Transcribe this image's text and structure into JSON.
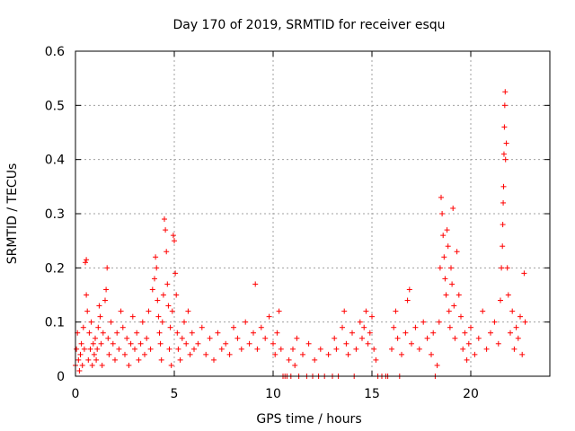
{
  "chart_data": {
    "type": "scatter",
    "title": "Day 170 of 2019, SRMTID for receiver esqu",
    "xlabel": "GPS time / hours",
    "ylabel": "SRMTID / TECUs",
    "xlim": [
      0,
      24
    ],
    "ylim": [
      0,
      0.6
    ],
    "xticks": [
      0,
      5,
      10,
      15,
      20
    ],
    "yticks": [
      0,
      0.1,
      0.2,
      0.3,
      0.4,
      0.5,
      0.6
    ],
    "xtick_labels": [
      "0",
      "5",
      "10",
      "15",
      "20"
    ],
    "ytick_labels": [
      "0",
      "0.1",
      "0.2",
      "0.3",
      "0.4",
      "0.5",
      "0.6"
    ],
    "grid": true,
    "marker": "+",
    "series": [
      {
        "name": "SRMTID",
        "color": "#ff0000",
        "points": [
          [
            0.0,
            0.02
          ],
          [
            0.05,
            0.05
          ],
          [
            0.1,
            0.08
          ],
          [
            0.15,
            0.03
          ],
          [
            0.2,
            0.01
          ],
          [
            0.25,
            0.04
          ],
          [
            0.3,
            0.06
          ],
          [
            0.35,
            0.02
          ],
          [
            0.4,
            0.09
          ],
          [
            0.45,
            0.05
          ],
          [
            0.5,
            0.21
          ],
          [
            0.55,
            0.215
          ],
          [
            0.55,
            0.15
          ],
          [
            0.6,
            0.12
          ],
          [
            0.65,
            0.03
          ],
          [
            0.7,
            0.08
          ],
          [
            0.75,
            0.05
          ],
          [
            0.8,
            0.1
          ],
          [
            0.85,
            0.02
          ],
          [
            0.9,
            0.06
          ],
          [
            0.95,
            0.04
          ],
          [
            1.0,
            0.07
          ],
          [
            1.05,
            0.03
          ],
          [
            1.1,
            0.05
          ],
          [
            1.15,
            0.09
          ],
          [
            1.2,
            0.13
          ],
          [
            1.25,
            0.11
          ],
          [
            1.3,
            0.06
          ],
          [
            1.35,
            0.02
          ],
          [
            1.4,
            0.08
          ],
          [
            1.5,
            0.14
          ],
          [
            1.55,
            0.16
          ],
          [
            1.6,
            0.2
          ],
          [
            1.65,
            0.07
          ],
          [
            1.7,
            0.04
          ],
          [
            1.8,
            0.1
          ],
          [
            1.9,
            0.06
          ],
          [
            2.0,
            0.03
          ],
          [
            2.1,
            0.08
          ],
          [
            2.2,
            0.05
          ],
          [
            2.3,
            0.12
          ],
          [
            2.4,
            0.09
          ],
          [
            2.5,
            0.04
          ],
          [
            2.6,
            0.07
          ],
          [
            2.7,
            0.02
          ],
          [
            2.8,
            0.06
          ],
          [
            2.9,
            0.11
          ],
          [
            3.0,
            0.05
          ],
          [
            3.1,
            0.08
          ],
          [
            3.2,
            0.03
          ],
          [
            3.3,
            0.06
          ],
          [
            3.4,
            0.1
          ],
          [
            3.5,
            0.04
          ],
          [
            3.6,
            0.07
          ],
          [
            3.7,
            0.12
          ],
          [
            3.8,
            0.05
          ],
          [
            3.9,
            0.16
          ],
          [
            4.0,
            0.18
          ],
          [
            4.05,
            0.22
          ],
          [
            4.1,
            0.2
          ],
          [
            4.15,
            0.14
          ],
          [
            4.2,
            0.11
          ],
          [
            4.25,
            0.08
          ],
          [
            4.3,
            0.06
          ],
          [
            4.35,
            0.03
          ],
          [
            4.4,
            0.1
          ],
          [
            4.45,
            0.15
          ],
          [
            4.5,
            0.29
          ],
          [
            4.55,
            0.27
          ],
          [
            4.6,
            0.23
          ],
          [
            4.65,
            0.17
          ],
          [
            4.7,
            0.13
          ],
          [
            4.75,
            0.05
          ],
          [
            4.8,
            0.09
          ],
          [
            4.85,
            0.02
          ],
          [
            4.9,
            0.12
          ],
          [
            4.95,
            0.26
          ],
          [
            5.0,
            0.25
          ],
          [
            5.05,
            0.19
          ],
          [
            5.1,
            0.15
          ],
          [
            5.15,
            0.08
          ],
          [
            5.2,
            0.05
          ],
          [
            5.3,
            0.03
          ],
          [
            5.4,
            0.07
          ],
          [
            5.5,
            0.1
          ],
          [
            5.6,
            0.06
          ],
          [
            5.7,
            0.12
          ],
          [
            5.8,
            0.04
          ],
          [
            5.9,
            0.08
          ],
          [
            6.0,
            0.05
          ],
          [
            6.2,
            0.06
          ],
          [
            6.4,
            0.09
          ],
          [
            6.6,
            0.04
          ],
          [
            6.8,
            0.07
          ],
          [
            7.0,
            0.03
          ],
          [
            7.2,
            0.08
          ],
          [
            7.4,
            0.05
          ],
          [
            7.6,
            0.06
          ],
          [
            7.8,
            0.04
          ],
          [
            8.0,
            0.09
          ],
          [
            8.2,
            0.07
          ],
          [
            8.4,
            0.05
          ],
          [
            8.6,
            0.1
          ],
          [
            8.8,
            0.06
          ],
          [
            9.0,
            0.08
          ],
          [
            9.1,
            0.17
          ],
          [
            9.2,
            0.05
          ],
          [
            9.4,
            0.09
          ],
          [
            9.6,
            0.07
          ],
          [
            9.8,
            0.11
          ],
          [
            10.0,
            0.06
          ],
          [
            10.1,
            0.04
          ],
          [
            10.2,
            0.08
          ],
          [
            10.3,
            0.12
          ],
          [
            10.4,
            0.05
          ],
          [
            10.5,
            0.0
          ],
          [
            10.6,
            0.0
          ],
          [
            10.7,
            0.0
          ],
          [
            10.8,
            0.03
          ],
          [
            10.9,
            0.0
          ],
          [
            11.0,
            0.05
          ],
          [
            11.1,
            0.02
          ],
          [
            11.2,
            0.07
          ],
          [
            11.3,
            0.0
          ],
          [
            11.5,
            0.04
          ],
          [
            11.7,
            0.0
          ],
          [
            11.8,
            0.06
          ],
          [
            12.0,
            0.0
          ],
          [
            12.1,
            0.03
          ],
          [
            12.3,
            0.0
          ],
          [
            12.4,
            0.05
          ],
          [
            12.6,
            0.0
          ],
          [
            12.8,
            0.04
          ],
          [
            13.0,
            0.0
          ],
          [
            13.1,
            0.07
          ],
          [
            13.2,
            0.05
          ],
          [
            13.3,
            0.0
          ],
          [
            13.5,
            0.09
          ],
          [
            13.6,
            0.12
          ],
          [
            13.7,
            0.06
          ],
          [
            13.8,
            0.04
          ],
          [
            14.0,
            0.08
          ],
          [
            14.1,
            0.0
          ],
          [
            14.2,
            0.05
          ],
          [
            14.4,
            0.1
          ],
          [
            14.5,
            0.07
          ],
          [
            14.6,
            0.09
          ],
          [
            14.7,
            0.12
          ],
          [
            14.8,
            0.06
          ],
          [
            14.9,
            0.08
          ],
          [
            15.0,
            0.11
          ],
          [
            15.1,
            0.05
          ],
          [
            15.2,
            0.03
          ],
          [
            15.3,
            0.0
          ],
          [
            15.5,
            0.0
          ],
          [
            15.7,
            0.0
          ],
          [
            15.8,
            0.0
          ],
          [
            16.0,
            0.05
          ],
          [
            16.1,
            0.09
          ],
          [
            16.2,
            0.12
          ],
          [
            16.3,
            0.07
          ],
          [
            16.4,
            0.0
          ],
          [
            16.5,
            0.04
          ],
          [
            16.7,
            0.08
          ],
          [
            16.8,
            0.14
          ],
          [
            16.9,
            0.16
          ],
          [
            17.0,
            0.06
          ],
          [
            17.2,
            0.09
          ],
          [
            17.4,
            0.05
          ],
          [
            17.6,
            0.1
          ],
          [
            17.8,
            0.07
          ],
          [
            18.0,
            0.04
          ],
          [
            18.1,
            0.08
          ],
          [
            18.2,
            0.0
          ],
          [
            18.3,
            0.02
          ],
          [
            18.4,
            0.1
          ],
          [
            18.45,
            0.2
          ],
          [
            18.5,
            0.33
          ],
          [
            18.55,
            0.3
          ],
          [
            18.6,
            0.26
          ],
          [
            18.65,
            0.22
          ],
          [
            18.7,
            0.18
          ],
          [
            18.75,
            0.15
          ],
          [
            18.8,
            0.27
          ],
          [
            18.85,
            0.24
          ],
          [
            18.9,
            0.12
          ],
          [
            18.95,
            0.09
          ],
          [
            19.0,
            0.2
          ],
          [
            19.05,
            0.17
          ],
          [
            19.1,
            0.31
          ],
          [
            19.15,
            0.13
          ],
          [
            19.2,
            0.07
          ],
          [
            19.3,
            0.23
          ],
          [
            19.4,
            0.15
          ],
          [
            19.5,
            0.11
          ],
          [
            19.6,
            0.05
          ],
          [
            19.7,
            0.08
          ],
          [
            19.8,
            0.03
          ],
          [
            19.9,
            0.06
          ],
          [
            20.0,
            0.09
          ],
          [
            20.2,
            0.04
          ],
          [
            20.4,
            0.07
          ],
          [
            20.6,
            0.12
          ],
          [
            20.8,
            0.05
          ],
          [
            21.0,
            0.08
          ],
          [
            21.2,
            0.1
          ],
          [
            21.4,
            0.06
          ],
          [
            21.5,
            0.14
          ],
          [
            21.55,
            0.2
          ],
          [
            21.6,
            0.24
          ],
          [
            21.62,
            0.28
          ],
          [
            21.64,
            0.32
          ],
          [
            21.66,
            0.35
          ],
          [
            21.68,
            0.41
          ],
          [
            21.7,
            0.46
          ],
          [
            21.72,
            0.5
          ],
          [
            21.74,
            0.525
          ],
          [
            21.76,
            0.4
          ],
          [
            21.8,
            0.43
          ],
          [
            21.85,
            0.2
          ],
          [
            21.9,
            0.15
          ],
          [
            22.0,
            0.08
          ],
          [
            22.1,
            0.12
          ],
          [
            22.2,
            0.05
          ],
          [
            22.3,
            0.09
          ],
          [
            22.4,
            0.07
          ],
          [
            22.5,
            0.11
          ],
          [
            22.6,
            0.04
          ],
          [
            22.7,
            0.19
          ],
          [
            22.75,
            0.1
          ]
        ]
      }
    ]
  }
}
